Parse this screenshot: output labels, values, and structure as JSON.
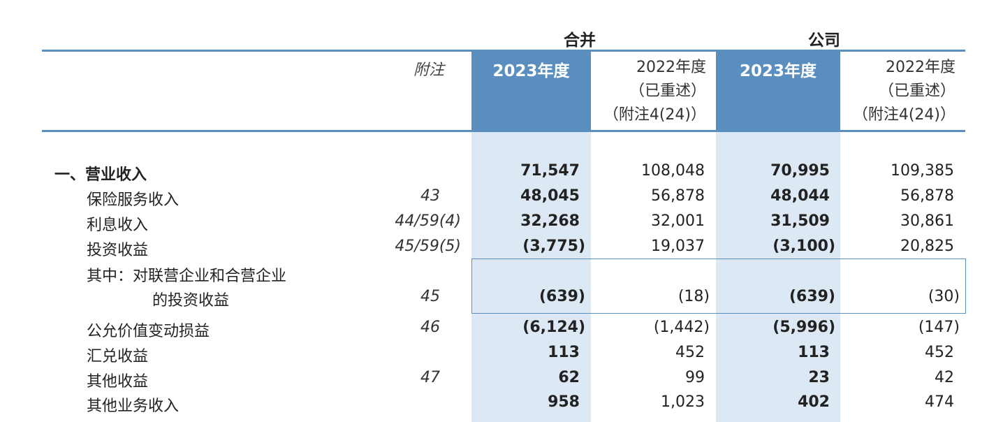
{
  "header": {
    "group_consolidated": "合并",
    "group_company": "公司",
    "note_label": "附注",
    "col_2023": "2023年度",
    "col_2022_lines": [
      "2022年度",
      "（已重述）",
      "（附注4(24)）"
    ]
  },
  "rows": [
    {
      "label": "一、营业收入",
      "note": "",
      "c2023": "71,547",
      "c2022": "108,048",
      "p2023": "70,995",
      "p2022": "109,385"
    },
    {
      "label": "保险服务收入",
      "note": "43",
      "c2023": "48,045",
      "c2022": "56,878",
      "p2023": "48,044",
      "p2022": "56,878"
    },
    {
      "label": "利息收入",
      "note": "44/59(4)",
      "c2023": "32,268",
      "c2022": "32,001",
      "p2023": "31,509",
      "p2022": "30,861"
    },
    {
      "label": "投资收益",
      "note": "45/59(5)",
      "c2023": "(3,775)",
      "c2022": "19,037",
      "p2023": "(3,100)",
      "p2022": "20,825"
    },
    {
      "label": "其中：对联营企业和合营企业",
      "label2": "的投资收益",
      "note": "45",
      "c2023": "(639)",
      "c2022": "(18)",
      "p2023": "(639)",
      "p2022": "(30)"
    },
    {
      "label": "公允价值变动损益",
      "note": "46",
      "c2023": "(6,124)",
      "c2022": "(1,442)",
      "p2023": "(5,996)",
      "p2022": "(147)"
    },
    {
      "label": "汇兑收益",
      "note": "",
      "c2023": "113",
      "c2022": "452",
      "p2023": "113",
      "p2022": "452"
    },
    {
      "label": "其他收益",
      "note": "47",
      "c2023": "62",
      "c2022": "99",
      "p2023": "23",
      "p2022": "42"
    },
    {
      "label": "其他业务收入",
      "note": "",
      "c2023": "958",
      "c2022": "1,023",
      "p2023": "402",
      "p2022": "474"
    }
  ]
}
